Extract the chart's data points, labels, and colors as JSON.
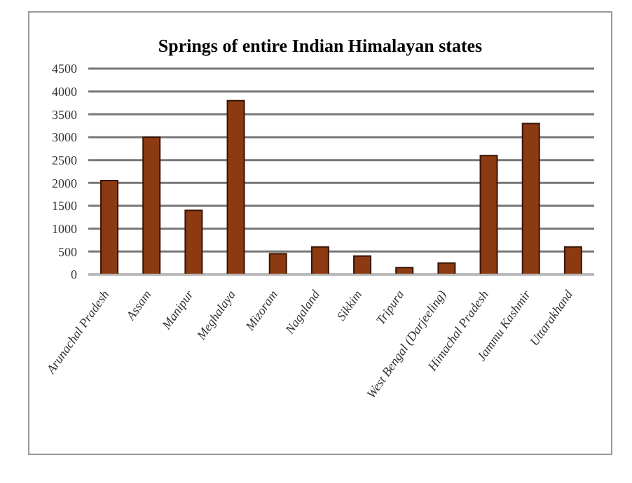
{
  "chart_data": {
    "type": "bar",
    "title": "Springs of entire Indian Himalayan states",
    "categories": [
      "Arunachal Pradesh",
      "Assam",
      "Manipur",
      "Meghalaya",
      "Mizoram",
      "Nagaland",
      "Sikkim",
      "Tripura",
      "West Bengal (Darjeeling)",
      "Himachal Pradesh",
      "Jammu Kashmir",
      "Uttarakhand"
    ],
    "values": [
      2050,
      3000,
      1400,
      3800,
      450,
      600,
      400,
      150,
      250,
      2600,
      3300,
      600
    ],
    "color": "#8b3a12",
    "ylim": [
      0,
      4500
    ],
    "yticks": [
      0,
      500,
      1000,
      1500,
      2000,
      2500,
      3000,
      3500,
      4000,
      4500
    ],
    "grid": "y"
  }
}
